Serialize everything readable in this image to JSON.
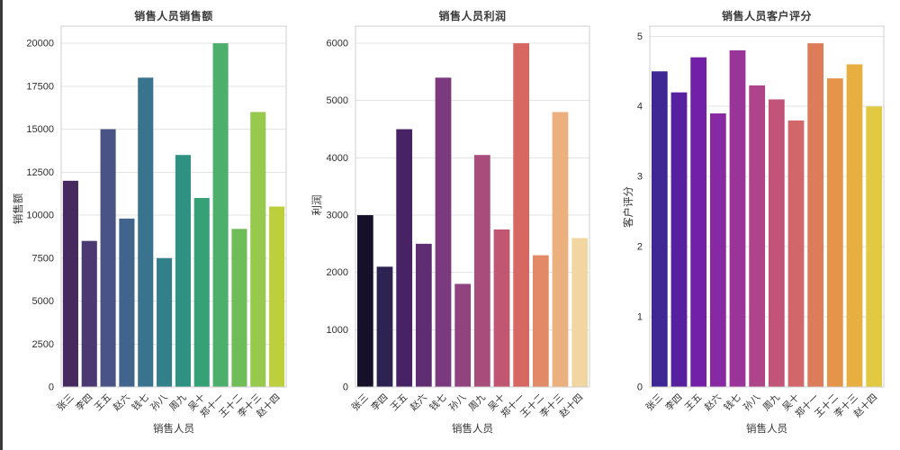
{
  "figure": {
    "xlabel": "销售人员",
    "categories": [
      "张三",
      "李四",
      "王五",
      "赵六",
      "钱七",
      "孙八",
      "周九",
      "吴十",
      "郑十一",
      "王十二",
      "李十三",
      "赵十四"
    ]
  },
  "chart_data": [
    {
      "type": "bar",
      "title": "销售人员销售额",
      "xlabel": "销售人员",
      "ylabel": "销售额",
      "categories": [
        "张三",
        "李四",
        "王五",
        "赵六",
        "钱七",
        "孙八",
        "周九",
        "吴十",
        "郑十一",
        "王十二",
        "李十三",
        "赵十四"
      ],
      "values": [
        12000,
        8500,
        15000,
        9800,
        18000,
        7500,
        13500,
        11000,
        20000,
        9200,
        16000,
        10500
      ],
      "ylim": [
        0,
        21000
      ],
      "yticks": [
        0,
        2500,
        5000,
        7500,
        10000,
        12500,
        15000,
        17500,
        20000
      ],
      "grid": true,
      "legend_position": "none",
      "palette": [
        "#46295e",
        "#4b3a71",
        "#4a5385",
        "#40648c",
        "#3a738d",
        "#32818a",
        "#2e9181",
        "#36a077",
        "#4daf6c",
        "#6fbd59",
        "#97c94c",
        "#bdd03b"
      ]
    },
    {
      "type": "bar",
      "title": "销售人员利润",
      "xlabel": "销售人员",
      "ylabel": "利润",
      "categories": [
        "张三",
        "李四",
        "王五",
        "赵六",
        "钱七",
        "孙八",
        "周九",
        "吴十",
        "郑十一",
        "王十二",
        "李十三",
        "赵十四"
      ],
      "values": [
        3000,
        2100,
        4500,
        2500,
        5400,
        1800,
        4050,
        2750,
        6000,
        2300,
        4800,
        2600
      ],
      "ylim": [
        0,
        6300
      ],
      "yticks": [
        0,
        1000,
        2000,
        3000,
        4000,
        5000,
        6000
      ],
      "grid": true,
      "legend_position": "none",
      "palette": [
        "#161129",
        "#2d2351",
        "#472366",
        "#5e2d72",
        "#7a3a7d",
        "#91437f",
        "#a84c7c",
        "#c05672",
        "#d66761",
        "#e28a67",
        "#ecb07e",
        "#f2d6a2"
      ]
    },
    {
      "type": "bar",
      "title": "销售人员客户评分",
      "xlabel": "销售人员",
      "ylabel": "客户评分",
      "categories": [
        "张三",
        "李四",
        "王五",
        "赵六",
        "钱七",
        "孙八",
        "周九",
        "吴十",
        "郑十一",
        "王十二",
        "李十三",
        "赵十四"
      ],
      "values": [
        4.5,
        4.2,
        4.7,
        3.9,
        4.8,
        4.3,
        4.1,
        3.8,
        4.9,
        4.4,
        4.6,
        4.0
      ],
      "ylim": [
        0,
        5.145
      ],
      "yticks": [
        0,
        1,
        2,
        3,
        4,
        5
      ],
      "grid": true,
      "legend_position": "none",
      "palette": [
        "#3f2795",
        "#56209f",
        "#7120a7",
        "#8729a3",
        "#9b3499",
        "#ae458a",
        "#c2547a",
        "#d1676a",
        "#dc7c58",
        "#e4954a",
        "#e7ae40",
        "#e2c942"
      ]
    }
  ]
}
